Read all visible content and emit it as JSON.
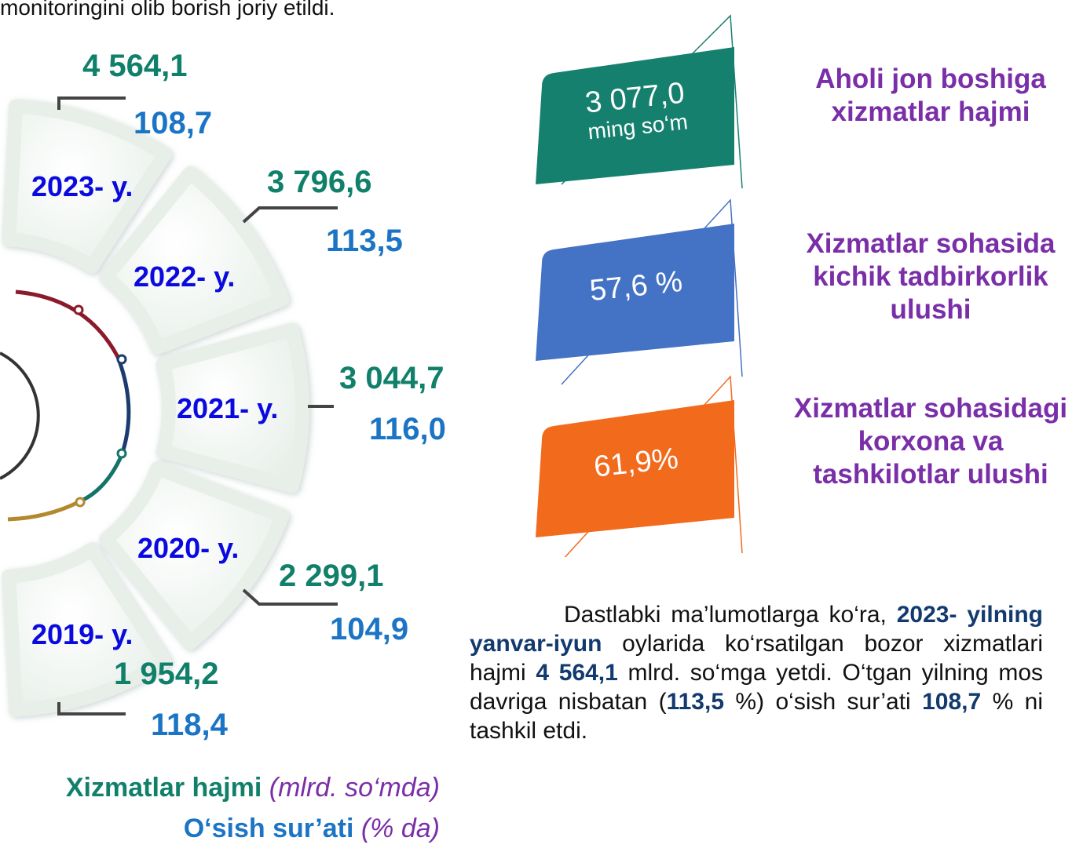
{
  "intro": "monitoringini olib borish joriy etildi.",
  "years": [
    {
      "label": "2023- y.",
      "volume": "4 564,1",
      "growth": "108,7"
    },
    {
      "label": "2022- y.",
      "volume": "3 796,6",
      "growth": "113,5"
    },
    {
      "label": "2021- y.",
      "volume": "3 044,7",
      "growth": "116,0"
    },
    {
      "label": "2020- y.",
      "volume": "2 299,1",
      "growth": "104,9"
    },
    {
      "label": "2019- y.",
      "volume": "1 954,2",
      "growth": "118,4"
    }
  ],
  "cards": [
    {
      "value": "3 077,0",
      "unit": "ming so‘m",
      "caption": "Aholi jon boshiga xizmatlar hajmi",
      "color": "#16806f"
    },
    {
      "value": "57,6 %",
      "caption": "Xizmatlar sohasida kichik tadbirkorlik ulushi",
      "color": "#4472c4"
    },
    {
      "value": "61,9%",
      "caption": "Xizmatlar sohasidagi korxona va tashkilotlar ulushi",
      "color": "#f26b1d"
    }
  ],
  "paragraph": [
    {
      "text": "Dastlabki ma’lumotlarga ko‘ra, ",
      "bold": false
    },
    {
      "text": "2023- yilning yanvar-iyun",
      "bold": true
    },
    {
      "text": " oylarida ko‘rsatilgan bozor xizmatlari hajmi ",
      "bold": false
    },
    {
      "text": "4 564,1",
      "bold": true
    },
    {
      "text": " mlrd. so‘mga yetdi. O‘tgan yilning mos davriga nisbatan (",
      "bold": false
    },
    {
      "text": "113,5",
      "bold": true
    },
    {
      "text": " %) o‘sish sur’ati ",
      "bold": false
    },
    {
      "text": "108,7",
      "bold": true
    },
    {
      "text": " % ni tashkil etdi.",
      "bold": false
    }
  ],
  "legend": [
    {
      "name": "Xizmatlar hajmi",
      "unit": "(mlrd. so‘mda)"
    },
    {
      "name": "O‘sish sur’ati",
      "unit": "(% da)"
    }
  ]
}
